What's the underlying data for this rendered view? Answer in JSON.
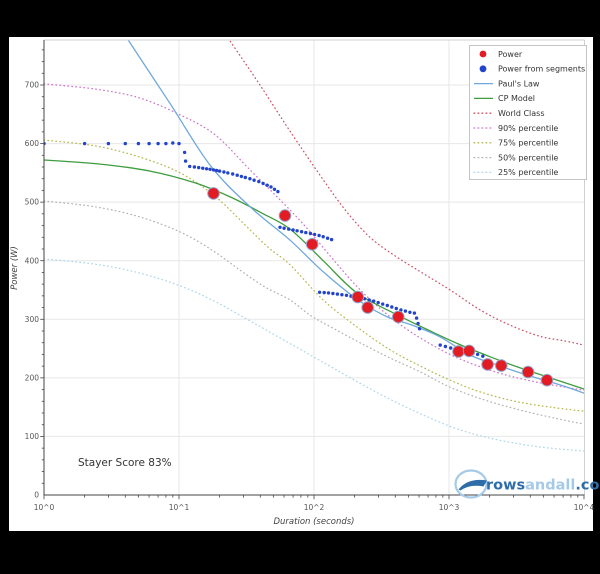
{
  "frame": {
    "bg": "#000000",
    "chart_bg": "#ffffff"
  },
  "axes": {
    "x": {
      "label": "Duration (seconds)",
      "ticks": [
        {
          "t": 1,
          "label": "10^0"
        },
        {
          "t": 10,
          "label": "10^1"
        },
        {
          "t": 100,
          "label": "10^2"
        },
        {
          "t": 1000,
          "label": "10^3"
        },
        {
          "t": 10000,
          "label": "10^4"
        }
      ]
    },
    "y": {
      "label": "Power (W)",
      "ticks": [
        0,
        100,
        200,
        300,
        400,
        500,
        600,
        700
      ],
      "minor_step": 20
    }
  },
  "annotations": {
    "stayer_score": "Stayer Score 83%"
  },
  "logo": {
    "part1": "rows",
    "part2": "andall",
    "part3": ".com",
    "color_dark": "#2e6da8",
    "color_light": "#a5cae8"
  },
  "legend": {
    "items": [
      {
        "label": "Power",
        "type": "dot",
        "color": "#e31b23"
      },
      {
        "label": "Power from segments",
        "type": "dot",
        "color": "#2244cc"
      },
      {
        "label": "Paul's Law",
        "type": "line",
        "color": "#6fa8dc"
      },
      {
        "label": "CP Model",
        "type": "line",
        "color": "#3d9c3d"
      },
      {
        "label": "World Class",
        "type": "dotted",
        "color": "#cc5566"
      },
      {
        "label": "90% percentile",
        "type": "dotted",
        "color": "#cc77cc"
      },
      {
        "label": "75% percentile",
        "type": "dotted",
        "color": "#b8b851"
      },
      {
        "label": "50% percentile",
        "type": "dotted",
        "color": "#b3b3b3"
      },
      {
        "label": "25% percentile",
        "type": "dotted",
        "color": "#aed6e8"
      }
    ]
  },
  "chart_data": {
    "type": "scatter",
    "xscale": "log",
    "xlim": [
      1,
      10000
    ],
    "ylim": [
      0,
      777
    ],
    "xlabel": "Duration (seconds)",
    "ylabel": "Power (W)",
    "grid": true,
    "legend_position": "upper right",
    "series": [
      {
        "name": "Power",
        "type": "scatter",
        "color": "#e31b23",
        "edge": "#93a4c8",
        "size": 5.8,
        "points": [
          [
            18,
            515
          ],
          [
            61,
            477
          ],
          [
            97,
            428
          ],
          [
            211,
            338
          ],
          [
            250,
            320
          ],
          [
            421,
            304
          ],
          [
            1175,
            245
          ],
          [
            1410,
            246
          ],
          [
            1930,
            223
          ],
          [
            2440,
            221
          ],
          [
            3850,
            210
          ],
          [
            5320,
            196
          ]
        ]
      },
      {
        "name": "Power from segments",
        "type": "scatter",
        "color": "#2244cc",
        "edge": "#2244cc",
        "size": 1.7,
        "points": [
          [
            1,
            600
          ],
          [
            2,
            600
          ],
          [
            3,
            600
          ],
          [
            4,
            600
          ],
          [
            5,
            600
          ],
          [
            6,
            600
          ],
          [
            7,
            600
          ],
          [
            8,
            600
          ],
          [
            9,
            601
          ],
          [
            10,
            600
          ],
          [
            11,
            585
          ],
          [
            11.2,
            570
          ],
          [
            12,
            561
          ],
          [
            13,
            560
          ],
          [
            14,
            559
          ],
          [
            15,
            558
          ],
          [
            16,
            557
          ],
          [
            17,
            556
          ],
          [
            18,
            555
          ],
          [
            19,
            554
          ],
          [
            20,
            553
          ],
          [
            21.5,
            551.5
          ],
          [
            23,
            550
          ],
          [
            25,
            548
          ],
          [
            27,
            546
          ],
          [
            29,
            544
          ],
          [
            31,
            542
          ],
          [
            33.5,
            540
          ],
          [
            36,
            537.5
          ],
          [
            39,
            535
          ],
          [
            42,
            532
          ],
          [
            45,
            529
          ],
          [
            48,
            526
          ],
          [
            51,
            522
          ],
          [
            54,
            518
          ],
          [
            56,
            457
          ],
          [
            60,
            455.5
          ],
          [
            65,
            454
          ],
          [
            70,
            452.5
          ],
          [
            75,
            451
          ],
          [
            81,
            449.5
          ],
          [
            87,
            448
          ],
          [
            94,
            446.5
          ],
          [
            101,
            445
          ],
          [
            109,
            443
          ],
          [
            117,
            441
          ],
          [
            126,
            438.5
          ],
          [
            135,
            436
          ],
          [
            110,
            346
          ],
          [
            119,
            345.5
          ],
          [
            128,
            345
          ],
          [
            138,
            344
          ],
          [
            149,
            343
          ],
          [
            161,
            342
          ],
          [
            174,
            341
          ],
          [
            188,
            339.5
          ],
          [
            203,
            338
          ],
          [
            219,
            336.5
          ],
          [
            237,
            335
          ],
          [
            256,
            333
          ],
          [
            277,
            331
          ],
          [
            299,
            328.5
          ],
          [
            323,
            326
          ],
          [
            349,
            323.5
          ],
          [
            377,
            321
          ],
          [
            407,
            318.5
          ],
          [
            440,
            316
          ],
          [
            475,
            314
          ],
          [
            513,
            312
          ],
          [
            554,
            310.5
          ],
          [
            575,
            302
          ],
          [
            590,
            293
          ],
          [
            605,
            284
          ],
          [
            860,
            256
          ],
          [
            940,
            253.5
          ],
          [
            1030,
            251
          ],
          [
            1130,
            249
          ],
          [
            1240,
            247
          ],
          [
            1360,
            245.5
          ],
          [
            1490,
            244
          ],
          [
            1630,
            240
          ],
          [
            1780,
            237
          ]
        ]
      },
      {
        "name": "Paul's Law",
        "type": "line",
        "color": "#6fa8dc",
        "points": [
          [
            4.2,
            777
          ],
          [
            8.6,
            668
          ],
          [
            17,
            563
          ],
          [
            33.6,
            492
          ],
          [
            66.5,
            435
          ],
          [
            117,
            381
          ],
          [
            212,
            333
          ],
          [
            349,
            304
          ],
          [
            533,
            290
          ],
          [
            859,
            270
          ],
          [
            1430,
            239
          ],
          [
            2400,
            220
          ],
          [
            4020,
            203
          ],
          [
            6650,
            188
          ],
          [
            10000,
            174
          ]
        ]
      },
      {
        "name": "CP Model",
        "type": "line",
        "color": "#3d9c3d",
        "points": [
          [
            1,
            572
          ],
          [
            2.6,
            565
          ],
          [
            6.1,
            553
          ],
          [
            13.1,
            533
          ],
          [
            23.9,
            509
          ],
          [
            41.3,
            481
          ],
          [
            66.5,
            454
          ],
          [
            117,
            400
          ],
          [
            208,
            345
          ],
          [
            418,
            307
          ],
          [
            726,
            280
          ],
          [
            1170,
            258
          ],
          [
            2020,
            236
          ],
          [
            3370,
            217
          ],
          [
            5620,
            200
          ],
          [
            10000,
            181
          ]
        ]
      },
      {
        "name": "World Class",
        "type": "dotted",
        "color": "#cc5566",
        "points": [
          [
            23.1,
            780
          ],
          [
            38.5,
            705
          ],
          [
            64,
            627
          ],
          [
            107,
            551
          ],
          [
            170,
            487
          ],
          [
            260,
            440
          ],
          [
            400,
            408
          ],
          [
            615,
            381
          ],
          [
            1020,
            350
          ],
          [
            1700,
            316
          ],
          [
            2830,
            290
          ],
          [
            4710,
            271
          ],
          [
            7230,
            263
          ],
          [
            10000,
            256
          ]
        ]
      },
      {
        "name": "90% percentile",
        "type": "dotted",
        "color": "#cc77cc",
        "points": [
          [
            1,
            702
          ],
          [
            2.4,
            693
          ],
          [
            5.1,
            678
          ],
          [
            10.2,
            649
          ],
          [
            18.5,
            615
          ],
          [
            33.6,
            555
          ],
          [
            56,
            504
          ],
          [
            86,
            459
          ],
          [
            132,
            408
          ],
          [
            202,
            359
          ],
          [
            310,
            318
          ],
          [
            473,
            285
          ],
          [
            727,
            258
          ],
          [
            1110,
            236
          ],
          [
            1700,
            219
          ],
          [
            2830,
            203
          ],
          [
            5140,
            190
          ],
          [
            10000,
            179
          ]
        ]
      },
      {
        "name": "75% percentile",
        "type": "dotted",
        "color": "#b8b851",
        "points": [
          [
            1,
            606
          ],
          [
            2.4,
            596
          ],
          [
            5.1,
            577
          ],
          [
            10.2,
            550
          ],
          [
            18.5,
            510
          ],
          [
            30.9,
            461
          ],
          [
            45.6,
            423
          ],
          [
            66.5,
            393
          ],
          [
            117,
            333
          ],
          [
            208,
            287
          ],
          [
            365,
            248
          ],
          [
            615,
            220
          ],
          [
            1020,
            196
          ],
          [
            1700,
            176
          ],
          [
            3080,
            160
          ],
          [
            5620,
            150
          ],
          [
            10000,
            143
          ]
        ]
      },
      {
        "name": "50% percentile",
        "type": "dotted",
        "color": "#b3b3b3",
        "points": [
          [
            1,
            502
          ],
          [
            2.4,
            492
          ],
          [
            5.1,
            475
          ],
          [
            10.2,
            449
          ],
          [
            17.6,
            418
          ],
          [
            28.3,
            384
          ],
          [
            43.4,
            355
          ],
          [
            66.5,
            333
          ],
          [
            93.5,
            307
          ],
          [
            138,
            285
          ],
          [
            219,
            260
          ],
          [
            365,
            234
          ],
          [
            615,
            210
          ],
          [
            1020,
            184
          ],
          [
            1850,
            162
          ],
          [
            3370,
            145
          ],
          [
            6130,
            131
          ],
          [
            10000,
            121
          ]
        ]
      },
      {
        "name": "25% percentile",
        "type": "dotted",
        "color": "#aed6e8",
        "points": [
          [
            1,
            403
          ],
          [
            2.4,
            394
          ],
          [
            5.1,
            379
          ],
          [
            10.2,
            357
          ],
          [
            17.6,
            333
          ],
          [
            30.9,
            302
          ],
          [
            51.5,
            273
          ],
          [
            86,
            244
          ],
          [
            143,
            215
          ],
          [
            239,
            186
          ],
          [
            400,
            159
          ],
          [
            667,
            135
          ],
          [
            1110,
            114
          ],
          [
            1850,
            99
          ],
          [
            3370,
            87
          ],
          [
            5620,
            80
          ],
          [
            10000,
            75
          ]
        ]
      }
    ]
  }
}
